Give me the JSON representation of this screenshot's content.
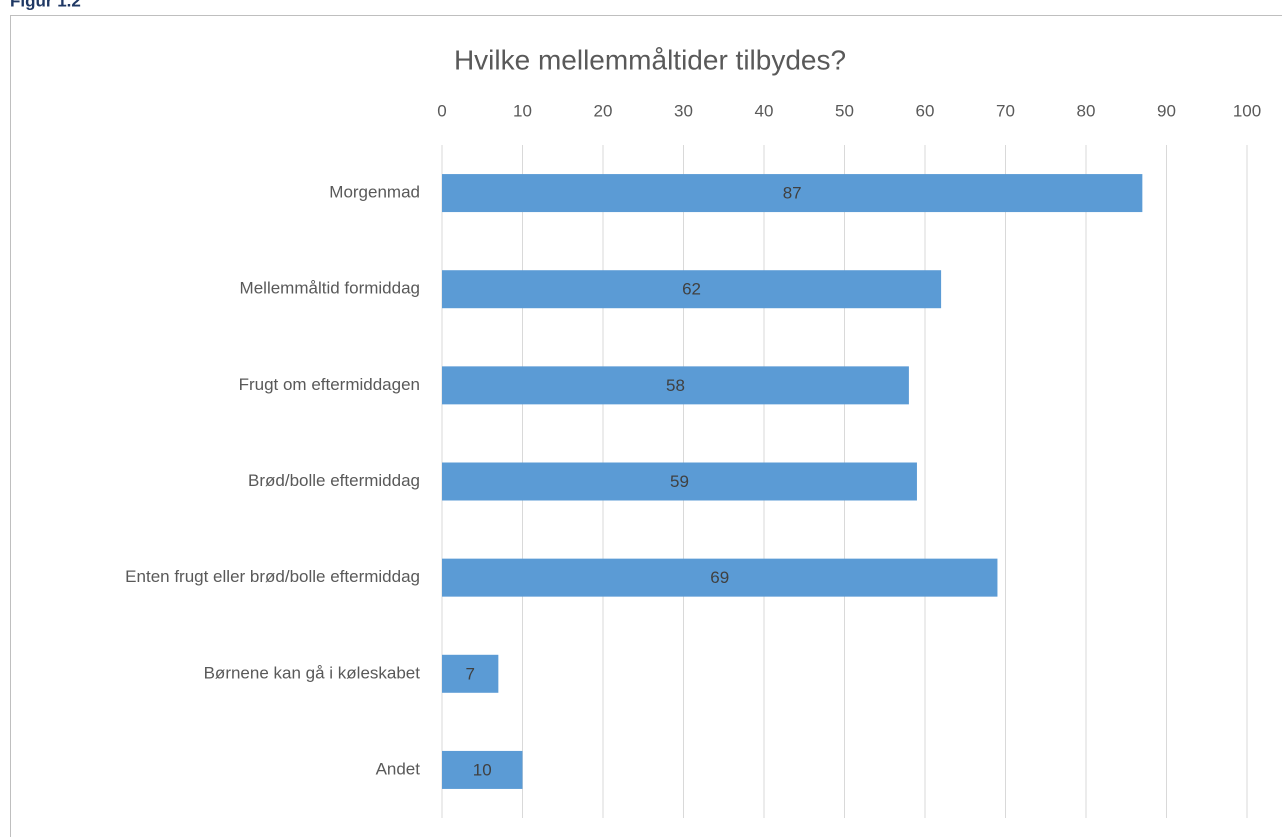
{
  "figure_label": "Figur 1.2",
  "chart_data": {
    "type": "bar",
    "orientation": "horizontal",
    "title": "Hvilke mellemmåltider tilbydes?",
    "categories": [
      "Morgenmad",
      "Mellemmåltid formiddag",
      "Frugt om eftermiddagen",
      "Brød/bolle eftermiddag",
      "Enten frugt eller brød/bolle eftermiddag",
      "Børnene kan gå i køleskabet",
      "Andet"
    ],
    "values": [
      87,
      62,
      58,
      59,
      69,
      7,
      10
    ],
    "color": "#5b9bd5",
    "xlim": [
      0,
      100
    ],
    "xticks": [
      0,
      10,
      20,
      30,
      40,
      50,
      60,
      70,
      80,
      90,
      100
    ],
    "grid": true,
    "data_labels": true
  }
}
